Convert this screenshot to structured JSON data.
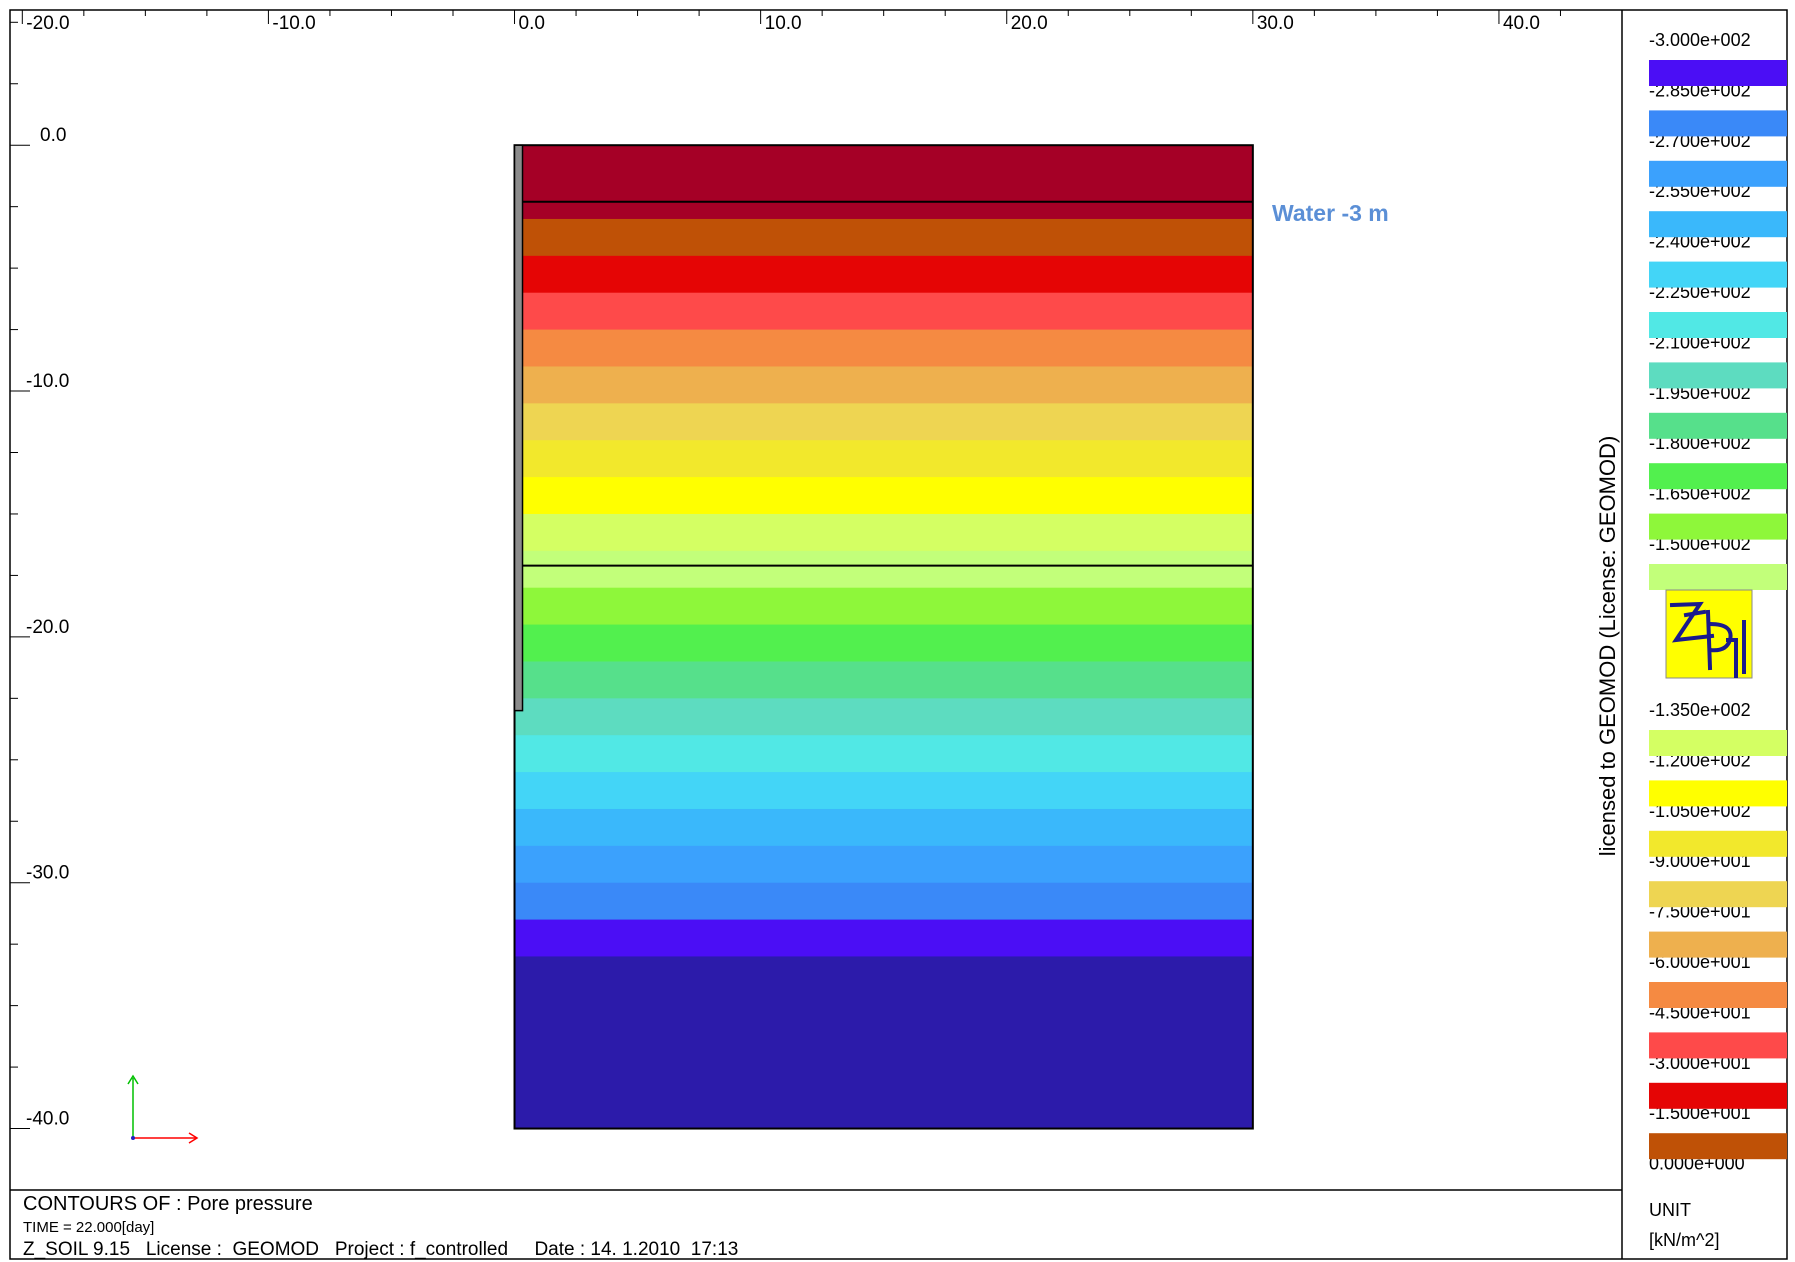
{
  "chart_data": {
    "type": "heatmap",
    "title": "CONTOURS OF : Pore pressure",
    "x_ticks": [
      "-20.0",
      "-10.0",
      "0.0",
      "10.0",
      "20.0",
      "30.0",
      "40.0"
    ],
    "x_tick_values": [
      -20,
      -10,
      0,
      10,
      20,
      30,
      40
    ],
    "y_ticks": [
      "0.0",
      "-10.0",
      "-20.0",
      "-30.0",
      "-40.0"
    ],
    "y_tick_values": [
      0,
      -10,
      -20,
      -30,
      -40
    ],
    "xlim": [
      -20.5,
      45.0
    ],
    "ylim": [
      -42.5,
      5.5
    ],
    "domain": {
      "x": [
        0,
        30
      ],
      "y": [
        -40,
        0
      ]
    },
    "wall": {
      "x": [
        -0.3,
        0
      ],
      "y": [
        -23,
        0
      ]
    },
    "layer_boundaries_y": [
      -2.3,
      -17.1
    ],
    "water_label": "Water -3 m",
    "bands": [
      {
        "y_top": 0.0,
        "y_bottom": -3.0,
        "color": "#a50026"
      },
      {
        "y_top": -3.0,
        "y_bottom": -4.5,
        "color": "#bf5106"
      },
      {
        "y_top": -4.5,
        "y_bottom": -6.0,
        "color": "#e50505"
      },
      {
        "y_top": -6.0,
        "y_bottom": -7.5,
        "color": "#fe4a4a"
      },
      {
        "y_top": -7.5,
        "y_bottom": -9.0,
        "color": "#f58a42"
      },
      {
        "y_top": -9.0,
        "y_bottom": -10.5,
        "color": "#eeb04e"
      },
      {
        "y_top": -10.5,
        "y_bottom": -12.0,
        "color": "#eed552"
      },
      {
        "y_top": -12.0,
        "y_bottom": -13.5,
        "color": "#f2e82c"
      },
      {
        "y_top": -13.5,
        "y_bottom": -15.0,
        "color": "#ffff00"
      },
      {
        "y_top": -15.0,
        "y_bottom": -16.5,
        "color": "#d4ff63"
      },
      {
        "y_top": -16.5,
        "y_bottom": -18.0,
        "color": "#c2ff7a"
      },
      {
        "y_top": -18.0,
        "y_bottom": -19.5,
        "color": "#8ef73a"
      },
      {
        "y_top": -19.5,
        "y_bottom": -21.0,
        "color": "#52f04e"
      },
      {
        "y_top": -21.0,
        "y_bottom": -22.5,
        "color": "#56e08b"
      },
      {
        "y_top": -22.5,
        "y_bottom": -24.0,
        "color": "#5ddcc0"
      },
      {
        "y_top": -24.0,
        "y_bottom": -25.5,
        "color": "#51e8e5"
      },
      {
        "y_top": -25.5,
        "y_bottom": -27.0,
        "color": "#43d5f7"
      },
      {
        "y_top": -27.0,
        "y_bottom": -28.5,
        "color": "#3ab8fb"
      },
      {
        "y_top": -28.5,
        "y_bottom": -30.0,
        "color": "#3ba1fd"
      },
      {
        "y_top": -30.0,
        "y_bottom": -31.5,
        "color": "#3a89f8"
      },
      {
        "y_top": -31.5,
        "y_bottom": -33.0,
        "color": "#4b0ef5"
      },
      {
        "y_top": -33.0,
        "y_bottom": -40.0,
        "color": "#2c1baa"
      }
    ],
    "legend": {
      "placement": "right",
      "unit_title": "UNIT",
      "unit": "[kN/m^2]",
      "group1": {
        "labels": [
          "-3.000e+002",
          "-2.850e+002",
          "-2.700e+002",
          "-2.550e+002",
          "-2.400e+002",
          "-2.250e+002",
          "-2.100e+002",
          "-1.950e+002",
          "-1.800e+002",
          "-1.650e+002",
          "-1.500e+002"
        ],
        "colors": [
          "#4b0ef5",
          "#3a89f8",
          "#3ba1fd",
          "#3ab8fb",
          "#43d5f7",
          "#51e8e5",
          "#5ddcc0",
          "#56e08b",
          "#52f04e",
          "#8ef73a",
          "#c2ff7a"
        ]
      },
      "group2": {
        "labels": [
          "-1.350e+002",
          "-1.200e+002",
          "-1.050e+002",
          "-9.000e+001",
          "-7.500e+001",
          "-6.000e+001",
          "-4.500e+001",
          "-3.000e+001",
          "-1.500e+001",
          "0.000e+000"
        ],
        "colors": [
          "#d4ff63",
          "#ffff00",
          "#f2e82c",
          "#eed552",
          "#eeb04e",
          "#f58a42",
          "#fe4a4a",
          "#e50505",
          "#bf5106"
        ]
      }
    }
  },
  "license_text": "licensed to GEOMOD (License: GEOMOD)",
  "footer": {
    "time_line": "TIME = 22.000[day]",
    "info_line": "Z_SOIL 9.15   License :  GEOMOD   Project : f_controlled     Date : 14. 1.2010  17:13"
  },
  "colors": {
    "logo_bg": "#ffff00",
    "logo_ink": "#1a1a8c",
    "axis_green": "#00c000",
    "axis_red": "#ff0000"
  },
  "icons": [
    "zsoil-logo-icon",
    "axis-triad-icon"
  ]
}
